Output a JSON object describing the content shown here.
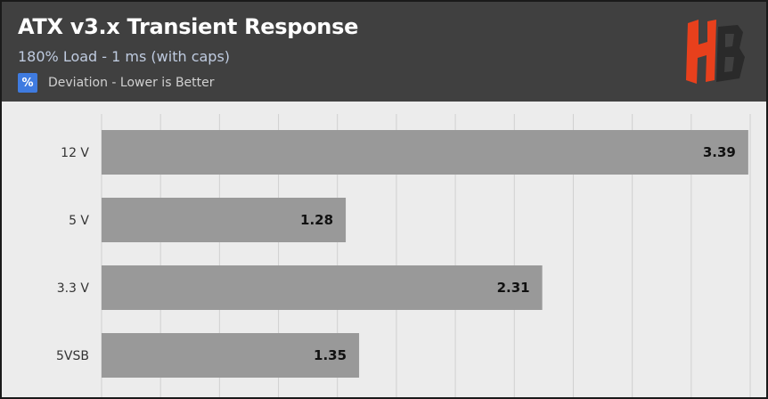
{
  "header": {
    "title": "ATX v3.x Transient Response",
    "subtitle": "180% Load - 1 ms (with caps)",
    "legend_icon": "%",
    "legend_text": "Deviation - Lower is Better"
  },
  "logo": {
    "icon": "hb-logo-icon",
    "text": "HB"
  },
  "colors": {
    "header_bg": "#404040",
    "plot_bg": "#ececec",
    "bar": "#999999",
    "legend_badge": "#3f7be0",
    "logo_orange": "#e8401c"
  },
  "chart_data": {
    "type": "bar",
    "orientation": "horizontal",
    "categories": [
      "12 V",
      "5 V",
      "3.3 V",
      "5VSB"
    ],
    "values": [
      3.39,
      1.28,
      2.31,
      1.35
    ],
    "xlim": [
      0,
      3.4
    ],
    "grid": true,
    "data_labels": true
  }
}
